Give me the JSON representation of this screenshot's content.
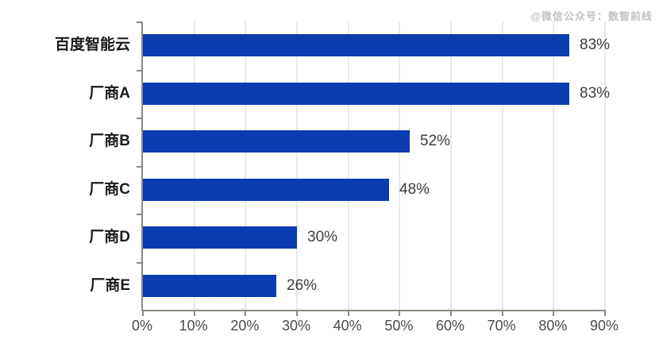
{
  "watermark": {
    "text": "@微信公众号：数智前线"
  },
  "chart_data": {
    "type": "bar",
    "orientation": "horizontal",
    "title": "",
    "xlabel": "",
    "ylabel": "",
    "categories": [
      "百度智能云",
      "厂商A",
      "厂商B",
      "厂商C",
      "厂商D",
      "厂商E"
    ],
    "values": [
      83,
      83,
      52,
      48,
      30,
      26
    ],
    "value_labels": [
      "83%",
      "83%",
      "52%",
      "48%",
      "30%",
      "26%"
    ],
    "x_tick_labels": [
      "0%",
      "10%",
      "20%",
      "30%",
      "40%",
      "50%",
      "60%",
      "70%",
      "80%",
      "90%"
    ],
    "xlim": [
      0,
      90
    ],
    "grid": "vertical",
    "legend": "none",
    "colors": {
      "bar": "#0b3cb0",
      "axis": "#90887f",
      "grid": "#e9e9e9",
      "category_label": "#1a1a1a",
      "value_label": "#3d3d3d",
      "tick_label": "#4b4b4b",
      "watermark": "#c2c2c2",
      "background": "#ffffff"
    }
  }
}
